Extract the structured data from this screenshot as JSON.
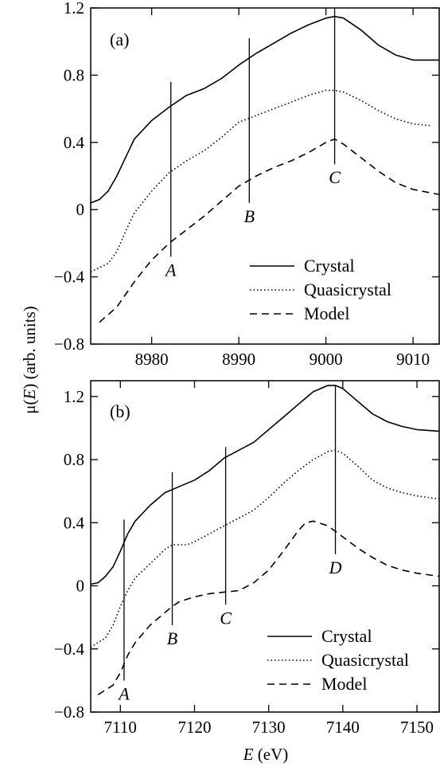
{
  "chart_data": [
    {
      "type": "line",
      "panel_label": "(a)",
      "xlim": [
        8973,
        9013
      ],
      "ylim": [
        -0.8,
        1.2
      ],
      "xticks": [
        8980,
        8990,
        9000,
        9010
      ],
      "xtick_labels": [
        "8980",
        "8990",
        "9000",
        "9010"
      ],
      "yticks": [
        -0.8,
        -0.4,
        0,
        0.4,
        0.8,
        1.2
      ],
      "ytick_labels": [
        "−0.8",
        "−0.4",
        "0",
        "0.4",
        "0.8",
        "1.2"
      ],
      "legend_position": "bottom-right",
      "series": [
        {
          "name": "Crystal",
          "style": "solid",
          "x": [
            8973,
            8974,
            8975,
            8976,
            8977,
            8978,
            8980,
            8982,
            8984,
            8986,
            8988,
            8990,
            8992,
            8994,
            8996,
            8998,
            9000,
            9001,
            9002,
            9004,
            9006,
            9008,
            9010,
            9012,
            9013
          ],
          "y": [
            0.04,
            0.06,
            0.11,
            0.2,
            0.31,
            0.42,
            0.53,
            0.61,
            0.68,
            0.72,
            0.78,
            0.86,
            0.93,
            0.99,
            1.05,
            1.1,
            1.14,
            1.15,
            1.14,
            1.07,
            0.98,
            0.92,
            0.89,
            0.89,
            0.89
          ]
        },
        {
          "name": "Quasicrystal",
          "style": "dotted",
          "x": [
            8973,
            8975,
            8976,
            8977,
            8978,
            8980,
            8982,
            8984,
            8986,
            8988,
            8990,
            8992,
            8994,
            8996,
            8998,
            9000,
            9001,
            9002,
            9004,
            9006,
            9008,
            9010,
            9012
          ],
          "y": [
            -0.37,
            -0.32,
            -0.25,
            -0.13,
            -0.02,
            0.11,
            0.22,
            0.29,
            0.35,
            0.43,
            0.52,
            0.56,
            0.6,
            0.64,
            0.68,
            0.71,
            0.71,
            0.7,
            0.65,
            0.59,
            0.54,
            0.51,
            0.5
          ]
        },
        {
          "name": "Model",
          "style": "dashed",
          "x": [
            8974,
            8976,
            8978,
            8980,
            8982,
            8984,
            8986,
            8988,
            8990,
            8992,
            8994,
            8996,
            8998,
            9000,
            9001,
            9002,
            9004,
            9006,
            9008,
            9010,
            9013
          ],
          "y": [
            -0.67,
            -0.58,
            -0.43,
            -0.3,
            -0.2,
            -0.12,
            -0.04,
            0.05,
            0.14,
            0.2,
            0.25,
            0.29,
            0.34,
            0.4,
            0.42,
            0.39,
            0.31,
            0.23,
            0.16,
            0.12,
            0.09
          ]
        }
      ],
      "markers": [
        {
          "label": "A",
          "x": 8982.2,
          "y_top": 0.76,
          "y_bottom": -0.28
        },
        {
          "label": "B",
          "x": 8991.2,
          "y_top": 1.02,
          "y_bottom": 0.04
        },
        {
          "label": "C",
          "x": 9001.0,
          "y_top": 1.2,
          "y_bottom": 0.27
        }
      ]
    },
    {
      "type": "line",
      "panel_label": "(b)",
      "xlim": [
        7106,
        7153
      ],
      "ylim": [
        -0.8,
        1.3
      ],
      "xticks": [
        7110,
        7120,
        7130,
        7140,
        7150
      ],
      "xtick_labels": [
        "7110",
        "7120",
        "7130",
        "7140",
        "7150"
      ],
      "yticks": [
        -0.8,
        -0.4,
        0,
        0.4,
        0.8,
        1.2
      ],
      "ytick_labels": [
        "−0.8",
        "−0.4",
        "0",
        "0.4",
        "0.8",
        "1.2"
      ],
      "legend_position": "bottom-right",
      "series": [
        {
          "name": "Crystal",
          "style": "solid",
          "x": [
            7106,
            7107,
            7108,
            7109,
            7110,
            7111,
            7112,
            7114,
            7116,
            7118,
            7120,
            7122,
            7124,
            7126,
            7128,
            7130,
            7132,
            7134,
            7136,
            7138,
            7139,
            7140,
            7142,
            7144,
            7146,
            7148,
            7150,
            7153
          ],
          "y": [
            0.01,
            0.02,
            0.06,
            0.12,
            0.22,
            0.33,
            0.41,
            0.51,
            0.59,
            0.63,
            0.67,
            0.73,
            0.81,
            0.86,
            0.91,
            0.99,
            1.07,
            1.15,
            1.23,
            1.27,
            1.27,
            1.25,
            1.17,
            1.09,
            1.04,
            1.01,
            0.99,
            0.98
          ]
        },
        {
          "name": "Quasicrystal",
          "style": "dotted",
          "x": [
            7106,
            7108,
            7109,
            7110,
            7111,
            7112,
            7114,
            7116,
            7117,
            7118,
            7119,
            7120,
            7122,
            7124,
            7126,
            7128,
            7130,
            7132,
            7134,
            7136,
            7138,
            7139,
            7140,
            7142,
            7144,
            7146,
            7148,
            7150,
            7153
          ],
          "y": [
            -0.39,
            -0.33,
            -0.25,
            -0.13,
            -0.03,
            0.05,
            0.14,
            0.23,
            0.26,
            0.26,
            0.26,
            0.28,
            0.33,
            0.38,
            0.43,
            0.48,
            0.56,
            0.65,
            0.73,
            0.8,
            0.85,
            0.86,
            0.84,
            0.76,
            0.67,
            0.62,
            0.59,
            0.57,
            0.55
          ]
        },
        {
          "name": "Model",
          "style": "dashed",
          "x": [
            7107,
            7109,
            7110,
            7111,
            7112,
            7114,
            7116,
            7117,
            7118,
            7120,
            7122,
            7124,
            7126,
            7128,
            7130,
            7132,
            7134,
            7135,
            7136,
            7138,
            7140,
            7142,
            7144,
            7146,
            7148,
            7150,
            7153
          ],
          "y": [
            -0.69,
            -0.63,
            -0.55,
            -0.44,
            -0.36,
            -0.25,
            -0.17,
            -0.13,
            -0.1,
            -0.07,
            -0.05,
            -0.04,
            -0.03,
            0.02,
            0.1,
            0.22,
            0.35,
            0.4,
            0.41,
            0.38,
            0.31,
            0.24,
            0.18,
            0.13,
            0.1,
            0.08,
            0.06
          ]
        }
      ],
      "markers": [
        {
          "label": "A",
          "x": 7110.5,
          "y_top": 0.42,
          "y_bottom": -0.6
        },
        {
          "label": "B",
          "x": 7117.0,
          "y_top": 0.72,
          "y_bottom": -0.25
        },
        {
          "label": "C",
          "x": 7124.2,
          "y_top": 0.88,
          "y_bottom": -0.12
        },
        {
          "label": "D",
          "x": 7139.0,
          "y_top": 1.27,
          "y_bottom": 0.2
        }
      ]
    }
  ],
  "ylabel_main": "μ(",
  "ylabel_var": "E",
  "ylabel_rest": ")  (arb. units)",
  "xlabel_var": "E",
  "xlabel_rest": "  (eV)"
}
